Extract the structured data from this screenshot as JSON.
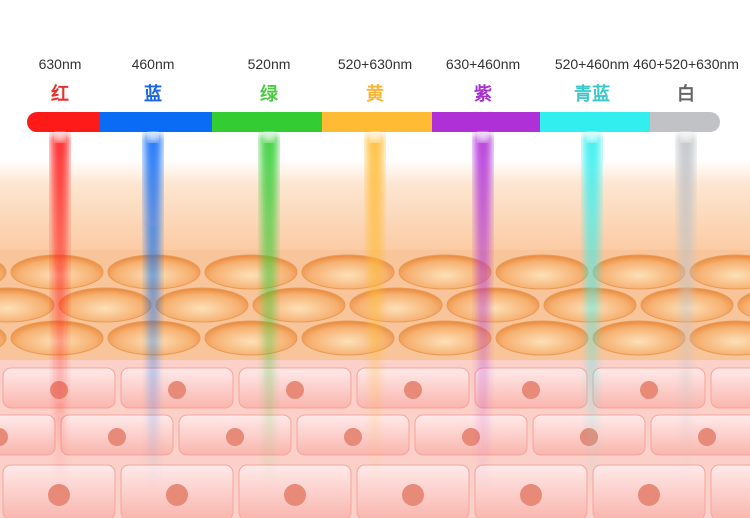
{
  "bands": [
    {
      "wavelength": "630nm",
      "name": "红",
      "color": "#ff1a1a",
      "text_color": "#e8322f"
    },
    {
      "wavelength": "460nm",
      "name": "蓝",
      "color": "#0a6cf5",
      "text_color": "#1a66e0"
    },
    {
      "wavelength": "520nm",
      "name": "绿",
      "color": "#33cc33",
      "text_color": "#4ccc44"
    },
    {
      "wavelength": "520+630nm",
      "name": "黄",
      "color": "#ffbb33",
      "text_color": "#f6b73a"
    },
    {
      "wavelength": "630+460nm",
      "name": "紫",
      "color": "#b030d8",
      "text_color": "#a533cc"
    },
    {
      "wavelength": "520+460nm",
      "name": "青蓝",
      "color": "#33eeee",
      "text_color": "#3cc8c8"
    },
    {
      "wavelength": "460+520+630nm",
      "name": "白",
      "color": "#c0c2c6",
      "text_color": "#666666"
    }
  ]
}
